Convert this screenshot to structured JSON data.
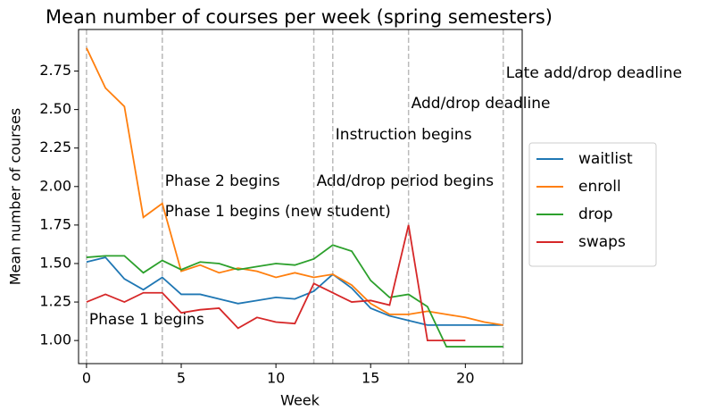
{
  "chart_data": {
    "type": "line",
    "title": "Mean number of courses per week (spring semesters)",
    "x_label": "Week",
    "y_label": "Mean number of courses",
    "x": [
      0,
      1,
      2,
      3,
      4,
      5,
      6,
      7,
      8,
      9,
      10,
      11,
      12,
      13,
      14,
      15,
      16,
      17,
      18,
      19,
      20,
      21,
      22
    ],
    "series": [
      {
        "name": "waitlist",
        "color": "#1f77b4",
        "values": [
          1.51,
          1.54,
          1.4,
          1.33,
          1.41,
          1.3,
          1.3,
          1.27,
          1.24,
          1.26,
          1.28,
          1.27,
          1.32,
          1.43,
          1.34,
          1.21,
          1.16,
          1.13,
          1.1,
          1.1,
          1.1,
          1.1,
          1.1
        ]
      },
      {
        "name": "enroll",
        "color": "#ff7f0e",
        "values": [
          2.9,
          2.64,
          2.52,
          1.8,
          1.89,
          1.45,
          1.49,
          1.44,
          1.47,
          1.45,
          1.41,
          1.44,
          1.41,
          1.43,
          1.36,
          1.24,
          1.17,
          1.17,
          1.19,
          1.17,
          1.15,
          1.12,
          1.1
        ]
      },
      {
        "name": "drop",
        "color": "#2ca02c",
        "values": [
          1.54,
          1.55,
          1.55,
          1.44,
          1.52,
          1.46,
          1.51,
          1.5,
          1.46,
          1.48,
          1.5,
          1.49,
          1.53,
          1.62,
          1.58,
          1.39,
          1.28,
          1.3,
          1.22,
          0.96,
          0.96,
          0.96,
          0.96
        ]
      },
      {
        "name": "swaps",
        "color": "#d62728",
        "values": [
          1.25,
          1.3,
          1.25,
          1.31,
          1.31,
          1.18,
          1.2,
          1.21,
          1.08,
          1.15,
          1.12,
          1.11,
          1.37,
          1.31,
          1.25,
          1.26,
          1.23,
          1.75,
          1.0,
          1.0,
          1.0,
          null,
          null
        ]
      }
    ],
    "events": [
      {
        "x": 0,
        "label": "Phase 1 begins"
      },
      {
        "x": 4,
        "label": "Phase 2 begins"
      },
      {
        "x": 4,
        "label": "Phase 1 begins (new student)"
      },
      {
        "x": 12,
        "label": "Add/drop period begins"
      },
      {
        "x": 13,
        "label": "Instruction begins"
      },
      {
        "x": 17,
        "label": "Add/drop deadline"
      },
      {
        "x": 22,
        "label": "Late add/drop deadline"
      }
    ],
    "xlim": [
      -0.42,
      23.0
    ],
    "ylim": [
      0.85,
      3.02
    ],
    "xticks": [
      0,
      5,
      10,
      15,
      20
    ],
    "yticks": [
      {
        "value": 1.0,
        "label": "1.00"
      },
      {
        "value": 1.25,
        "label": "1.25"
      },
      {
        "value": 1.5,
        "label": "1.50"
      },
      {
        "value": 1.75,
        "label": "1.75"
      },
      {
        "value": 2.0,
        "label": "2.00"
      },
      {
        "value": 2.25,
        "label": "2.25"
      },
      {
        "value": 2.5,
        "label": "2.50"
      },
      {
        "value": 2.75,
        "label": "2.75"
      }
    ],
    "legend": "right",
    "grid": false
  }
}
